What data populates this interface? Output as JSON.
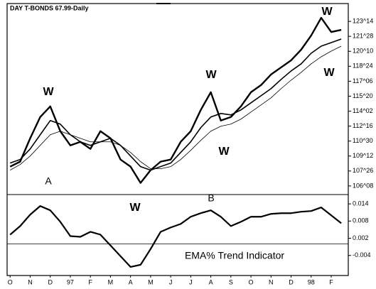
{
  "chart_data": [
    {
      "type": "line",
      "title": "DAY T-BONDS 67.99-Daily",
      "x": [
        0,
        0.5,
        1,
        1.5,
        2,
        2.5,
        3,
        3.5,
        4,
        4.5,
        5,
        5.5,
        6,
        6.5,
        7,
        7.5,
        8,
        8.5,
        9,
        9.5,
        10,
        10.5,
        11,
        11.5,
        12,
        12.5,
        13,
        13.5,
        14,
        14.5,
        15,
        15.5,
        16,
        16.5
      ],
      "series": [
        {
          "color": "#000000",
          "line_width": 2.4,
          "values": [
            108.27,
            108.79,
            111.23,
            113.45,
            114.56,
            111.97,
            110.49,
            110.86,
            110.12,
            111.97,
            111.23,
            109.01,
            108.27,
            106.57,
            107.9,
            108.79,
            109.01,
            110.86,
            111.97,
            114.19,
            116.04,
            113.08,
            113.45,
            114.56,
            116.04,
            116.78,
            117.89,
            118.63,
            119.37,
            120.48,
            121.96,
            123.81,
            122.33,
            122.55
          ]
        },
        {
          "color": "#000000",
          "line_width": 1.6,
          "values": [
            108.64,
            109.01,
            110.12,
            111.6,
            113.08,
            112.71,
            111.6,
            110.86,
            110.49,
            110.86,
            111.23,
            110.49,
            109.38,
            108.27,
            107.9,
            108.27,
            108.64,
            109.75,
            110.86,
            112.34,
            113.45,
            113.82,
            113.67,
            114.19,
            114.93,
            115.67,
            116.41,
            117.37,
            118.26,
            119.0,
            120.11,
            120.85,
            121.22,
            121.59
          ]
        },
        {
          "color": "#000000",
          "line_width": 0.8,
          "values": [
            107.9,
            108.49,
            109.38,
            110.49,
            111.6,
            111.97,
            111.6,
            111.23,
            110.86,
            110.86,
            110.86,
            110.49,
            109.75,
            108.79,
            108.05,
            108.05,
            108.27,
            109.01,
            109.97,
            111.01,
            111.97,
            112.49,
            112.71,
            113.23,
            113.97,
            114.71,
            115.45,
            116.41,
            117.3,
            118.11,
            119.0,
            119.74,
            120.33,
            120.85
          ]
        }
      ],
      "xlim": [
        -0.15,
        16.85
      ],
      "ylim": [
        105.5,
        125.3
      ],
      "yticks": [
        {
          "value": 123.4375,
          "label": "123^14"
        },
        {
          "value": 121.875,
          "label": "121^28"
        },
        {
          "value": 120.3125,
          "label": "120^10"
        },
        {
          "value": 118.75,
          "label": "118^24"
        },
        {
          "value": 117.1875,
          "label": "117^06"
        },
        {
          "value": 115.625,
          "label": "115^20"
        },
        {
          "value": 114.0625,
          "label": "114^02"
        },
        {
          "value": 112.5,
          "label": "112^16"
        },
        {
          "value": 110.9375,
          "label": "110^30"
        },
        {
          "value": 109.375,
          "label": "109^12"
        },
        {
          "value": 107.8125,
          "label": "107^26"
        },
        {
          "value": 106.25,
          "label": "106^08"
        }
      ],
      "annotations": [
        "W",
        "W",
        "W",
        "W",
        "W",
        "W",
        "A",
        "B"
      ]
    },
    {
      "type": "line",
      "x": [
        0,
        0.5,
        1,
        1.5,
        2,
        2.5,
        3,
        3.5,
        4,
        4.5,
        5,
        5.5,
        6,
        6.5,
        7,
        7.5,
        8,
        8.5,
        9,
        9.5,
        10,
        10.5,
        11,
        11.5,
        12,
        12.5,
        13,
        13.5,
        14,
        14.5,
        15,
        15.5,
        16,
        16.5
      ],
      "series": [
        {
          "color": "#000000",
          "line_width": 2.2,
          "values": [
            0.00325,
            0.00625,
            0.01025,
            0.01325,
            0.01175,
            0.00775,
            0.00275,
            0.0025,
            0.00425,
            0.00325,
            -0.0005,
            -0.00425,
            -0.008,
            -0.00725,
            -0.00175,
            0.00425,
            0.00575,
            0.007,
            0.0095,
            0.01075,
            0.01175,
            0.0095,
            0.00625,
            0.00775,
            0.0095,
            0.0095,
            0.0105,
            0.01075,
            0.01075,
            0.01125,
            0.0115,
            0.01275,
            0.01,
            0.00725
          ]
        }
      ],
      "xlim": [
        -0.15,
        16.85
      ],
      "ylim": [
        -0.011,
        0.017
      ],
      "yticks": [
        0.014,
        0.008,
        0.002,
        -0.004
      ],
      "zero_line": true,
      "xticks": [
        {
          "value": 0,
          "label": "O"
        },
        {
          "value": 1,
          "label": "N"
        },
        {
          "value": 2,
          "label": "D"
        },
        {
          "value": 3,
          "label": "97"
        },
        {
          "value": 4,
          "label": "F"
        },
        {
          "value": 5,
          "label": "M"
        },
        {
          "value": 6,
          "label": "A"
        },
        {
          "value": 7,
          "label": "M"
        },
        {
          "value": 8,
          "label": "J"
        },
        {
          "value": 9,
          "label": "J"
        },
        {
          "value": 10,
          "label": "A"
        },
        {
          "value": 11,
          "label": "S"
        },
        {
          "value": 12,
          "label": "O"
        },
        {
          "value": 13,
          "label": "N"
        },
        {
          "value": 14,
          "label": "D"
        },
        {
          "value": 15,
          "label": "98"
        },
        {
          "value": 16,
          "label": "F"
        }
      ],
      "annotations": [
        "EMA% Trend Indicator"
      ]
    }
  ]
}
